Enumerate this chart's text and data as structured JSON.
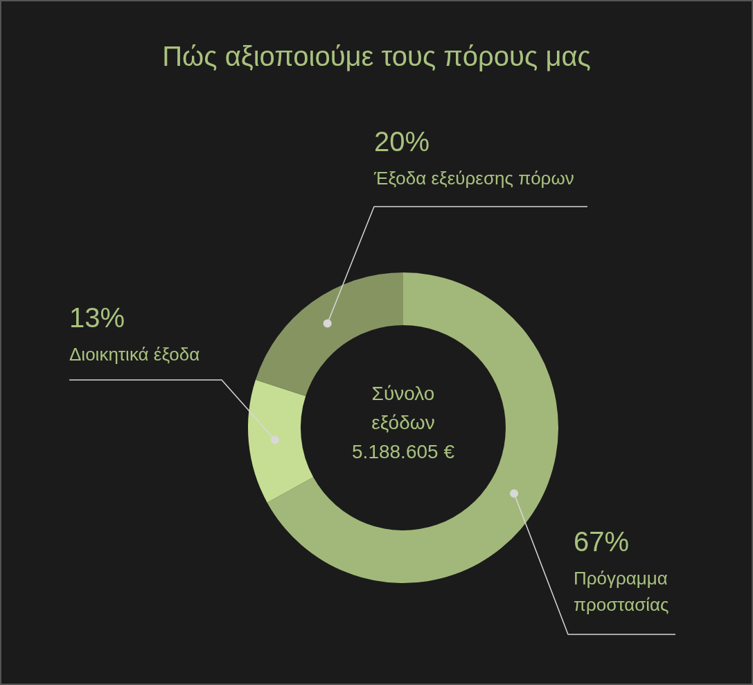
{
  "chart_data": {
    "type": "donut",
    "title": "Πώς αξιοποιούμε τους πόρους μας",
    "categories": [
      "Πρόγραμμα προστασίας",
      "Διοικητικά έξοδα",
      "Έξοδα εξεύρεσης πόρων"
    ],
    "values": [
      67,
      13,
      20
    ],
    "colors": [
      "#a2b87a",
      "#c6dd94",
      "#869462"
    ],
    "value_labels": [
      "67%",
      "13%",
      "20%"
    ],
    "annotations": [
      "Σύνολο εξόδων 5.188.605 €"
    ]
  }
}
